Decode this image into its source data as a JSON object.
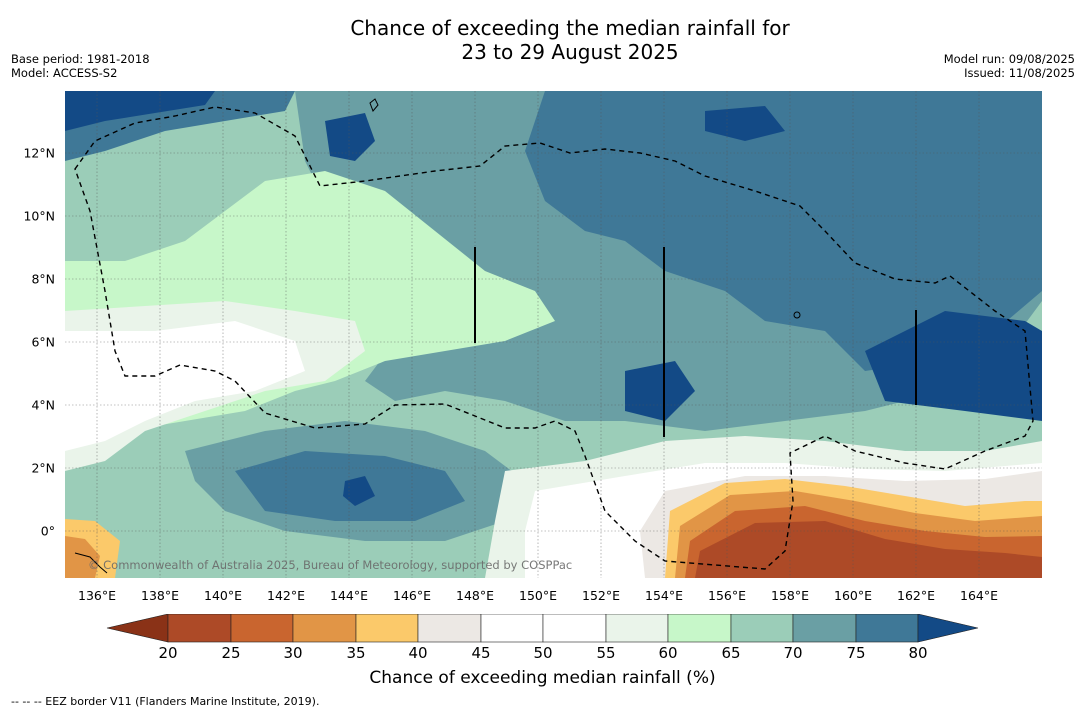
{
  "title_line1": "Chance of exceeding the median rainfall for",
  "title_line2": "23 to 29 August 2025",
  "base_period": "Base period: 1981-2018",
  "model": "Model: ACCESS-S2",
  "model_run": "Model run: 09/08/2025",
  "issued": "Issued: 11/08/2025",
  "copyright": "© Commonwealth of Australia 2025, Bureau of Meteorology, supported by COSPPac",
  "footnote": "--  --  -- EEZ border V11 (Flanders Marine Institute, 2019).",
  "colorbar_title": "Chance of exceeding median rainfall (%)",
  "lon_labels": [
    "136°E",
    "138°E",
    "140°E",
    "142°E",
    "144°E",
    "146°E",
    "148°E",
    "150°E",
    "152°E",
    "154°E",
    "156°E",
    "158°E",
    "160°E",
    "162°E",
    "164°E"
  ],
  "lat_labels": [
    "12°N",
    "10°N",
    "8°N",
    "6°N",
    "4°N",
    "2°N",
    "0°"
  ],
  "colorbar_ticks": [
    "20",
    "25",
    "30",
    "35",
    "40",
    "45",
    "50",
    "55",
    "60",
    "65",
    "70",
    "75",
    "80"
  ],
  "colors": {
    "lt20": "#8a3217",
    "20-25": "#ad4a27",
    "25-30": "#c9652f",
    "30-35": "#e19546",
    "35-40": "#fbc96a",
    "40-45": "#ece8e4",
    "45-50": "#ffffff",
    "50-55": "#ffffff",
    "55-60": "#eaf4ea",
    "60-65": "#c7f7c9",
    "65-70": "#9bcdb8",
    "70-75": "#6a9fa4",
    "75-80": "#3f7897",
    "gt80": "#134a86"
  }
}
